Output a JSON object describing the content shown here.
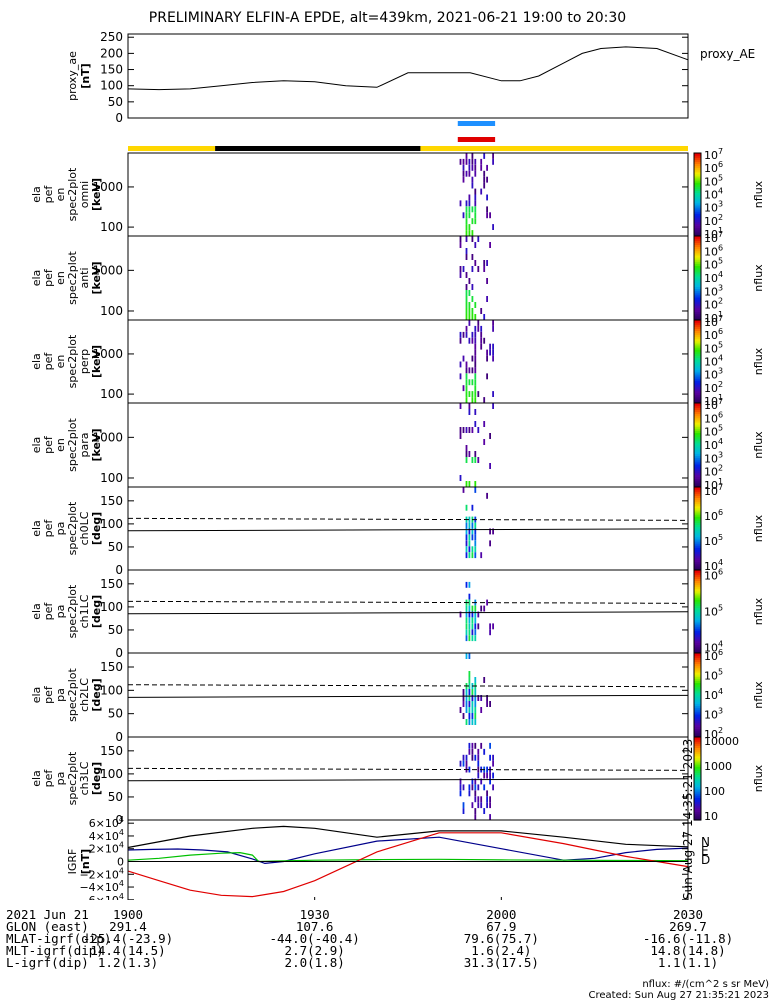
{
  "title": "PRELIMINARY ELFIN-A EPDE, alt=439km, 2021-06-21 19:00 to 20:30",
  "chart_data": [
    {
      "type": "line",
      "name": "proxy_ae",
      "ylabel": "proxy_ae",
      "yunit": "[nT]",
      "legend": "proxy_AE",
      "ylim": [
        0,
        260
      ],
      "yticks": [
        "0",
        "50",
        "100",
        "150",
        "200",
        "250"
      ],
      "xlim": [
        0,
        90
      ],
      "x": [
        0,
        5,
        10,
        15,
        20,
        25,
        30,
        35,
        40,
        45,
        50,
        55,
        60,
        63,
        66,
        70,
        73,
        76,
        80,
        85,
        90
      ],
      "values": [
        90,
        88,
        90,
        100,
        110,
        115,
        112,
        100,
        95,
        140,
        140,
        140,
        115,
        115,
        130,
        170,
        200,
        215,
        220,
        215,
        180
      ]
    },
    {
      "type": "heatmap",
      "name": "spec2plot omni",
      "ylabel_lines": [
        "ela",
        "pef",
        "en",
        "spec2plot",
        "omni"
      ],
      "yunit": "[keV]",
      "ylog": true,
      "ylim": [
        60,
        7000
      ],
      "yticks": [
        "100",
        "1000"
      ],
      "zlabel": "nflux",
      "zlim_exp": [
        1,
        7
      ],
      "zticks": [
        "10^1",
        "10^2",
        "10^3",
        "10^4",
        "10^5",
        "10^6",
        "10^7"
      ]
    },
    {
      "type": "heatmap",
      "name": "spec2plot anti",
      "ylabel_lines": [
        "ela",
        "pef",
        "en",
        "spec2plot",
        "anti"
      ],
      "yunit": "[keV]",
      "ylog": true,
      "ylim": [
        60,
        7000
      ],
      "yticks": [
        "100",
        "1000"
      ],
      "zlabel": "nflux",
      "zlim_exp": [
        1,
        7
      ],
      "zticks": [
        "10^1",
        "10^2",
        "10^3",
        "10^4",
        "10^5",
        "10^6",
        "10^7"
      ]
    },
    {
      "type": "heatmap",
      "name": "spec2plot perp",
      "ylabel_lines": [
        "ela",
        "pef",
        "en",
        "spec2plot",
        "perp"
      ],
      "yunit": "[keV]",
      "ylog": true,
      "ylim": [
        60,
        7000
      ],
      "yticks": [
        "100",
        "1000"
      ],
      "zlabel": "nflux",
      "zlim_exp": [
        1,
        7
      ],
      "zticks": [
        "10^1",
        "10^2",
        "10^3",
        "10^4",
        "10^5",
        "10^6",
        "10^7"
      ]
    },
    {
      "type": "heatmap",
      "name": "spec2plot para",
      "ylabel_lines": [
        "ela",
        "pef",
        "en",
        "spec2plot",
        "para"
      ],
      "yunit": "[keV]",
      "ylog": true,
      "ylim": [
        60,
        7000
      ],
      "yticks": [
        "100",
        "1000"
      ],
      "zlabel": "nflux",
      "zlim_exp": [
        1,
        7
      ],
      "zticks": [
        "10^1",
        "10^2",
        "10^3",
        "10^4",
        "10^5",
        "10^6",
        "10^7"
      ]
    },
    {
      "type": "heatmap",
      "name": "spec2plot ch0LC",
      "ylabel_lines": [
        "ela",
        "pef",
        "pa",
        "spec2plot",
        "ch0LC"
      ],
      "yunit": "[deg]",
      "ylim": [
        0,
        180
      ],
      "yticks": [
        "0",
        "50",
        "100",
        "150"
      ],
      "zlabel": "nflux",
      "zlim_exp": [
        3.5,
        7
      ],
      "zticks": [
        "10^4",
        "10^5",
        "10^6",
        "10^7"
      ]
    },
    {
      "type": "heatmap",
      "name": "spec2plot ch1LC",
      "ylabel_lines": [
        "ela",
        "pef",
        "pa",
        "spec2plot",
        "ch1LC"
      ],
      "yunit": "[deg]",
      "ylim": [
        0,
        180
      ],
      "yticks": [
        "0",
        "50",
        "100",
        "150"
      ],
      "zlabel": "nflux",
      "zlim_exp": [
        3.5,
        6.5
      ],
      "zticks": [
        "10^4",
        "10^5",
        "10^6"
      ]
    },
    {
      "type": "heatmap",
      "name": "spec2plot ch2LC",
      "ylabel_lines": [
        "ela",
        "pef",
        "pa",
        "spec2plot",
        "ch2LC"
      ],
      "yunit": "[deg]",
      "ylim": [
        0,
        180
      ],
      "yticks": [
        "0",
        "50",
        "100",
        "150"
      ],
      "zlabel": "nflux",
      "zlim_exp": [
        2,
        6.5
      ],
      "zticks": [
        "10^2",
        "10^3",
        "10^4",
        "10^5",
        "10^6"
      ]
    },
    {
      "type": "heatmap",
      "name": "spec2plot ch3LC",
      "ylabel_lines": [
        "ela",
        "pef",
        "pa",
        "spec2plot",
        "ch3LC"
      ],
      "yunit": "[deg]",
      "ylim": [
        0,
        180
      ],
      "yticks": [
        "0",
        "50",
        "100",
        "150"
      ],
      "zlabel": "nflux",
      "zlim_exp": [
        1,
        4
      ],
      "zticks": [
        "10",
        "100",
        "1000",
        "10000"
      ]
    },
    {
      "type": "line",
      "name": "IGRF",
      "ylabel": "IGRF",
      "yunit": "[nT]",
      "ylim": [
        -65000,
        65000
      ],
      "yticks": [
        "6×10^4",
        "4×10^4",
        "2×10^4",
        "0",
        "−2×10^4",
        "−4×10^4",
        "−6×10^4"
      ],
      "ytick_values": [
        60000,
        40000,
        20000,
        0,
        -20000,
        -40000,
        -60000
      ],
      "legend": [
        "N",
        "E",
        "D"
      ],
      "stamp": "Sun Aug 27 14:35:21 2023",
      "xlim": [
        0,
        90
      ],
      "series": [
        {
          "name": "N",
          "color": "#00008b",
          "x": [
            0,
            4,
            8,
            12,
            16,
            20,
            22,
            25,
            30,
            40,
            50,
            60,
            70,
            75,
            80,
            85,
            90
          ],
          "values": [
            18000,
            19000,
            19500,
            18000,
            15000,
            4000,
            -3000,
            0,
            12000,
            32000,
            38000,
            20000,
            2000,
            5000,
            14000,
            19000,
            21000
          ]
        },
        {
          "name": "E",
          "color": "#00c000",
          "x": [
            0,
            5,
            10,
            15,
            18,
            20,
            21,
            25,
            30,
            40,
            50,
            60,
            70,
            80,
            90
          ],
          "values": [
            2000,
            5000,
            10000,
            13000,
            14000,
            10000,
            0,
            1000,
            2000,
            3000,
            3500,
            2500,
            2000,
            1500,
            1200
          ]
        },
        {
          "name": "D",
          "color": "#e00000",
          "x": [
            0,
            5,
            10,
            15,
            20,
            25,
            30,
            40,
            50,
            60,
            70,
            80,
            90
          ],
          "values": [
            -15000,
            -30000,
            -45000,
            -53000,
            -55000,
            -47000,
            -30000,
            15000,
            45000,
            45000,
            28000,
            8000,
            -8000
          ]
        },
        {
          "name": "T",
          "color": "#000000",
          "x": [
            0,
            10,
            20,
            25,
            30,
            40,
            50,
            60,
            70,
            80,
            90
          ],
          "values": [
            22000,
            40000,
            52000,
            55000,
            52000,
            38000,
            48000,
            48000,
            38000,
            27000,
            23000
          ]
        }
      ]
    }
  ],
  "overlays": {
    "lc_dashed_deg": 112,
    "lc_solid_deg": 85
  },
  "time_bars": {
    "blue_range": [
      53,
      59
    ],
    "red_range": [
      53,
      59
    ],
    "segments": [
      {
        "from": 0,
        "to": 14,
        "color": "#ffd700"
      },
      {
        "from": 14,
        "to": 47,
        "color": "#000000"
      },
      {
        "from": 47,
        "to": 90,
        "color": "#ffd700"
      }
    ],
    "blue_color": "#1e90ff",
    "red_color": "#e00000"
  },
  "burst_range": [
    53,
    59
  ],
  "footer": {
    "rows": [
      {
        "label": "2021 Jun 21",
        "values": [
          "1900",
          "1930",
          "2000",
          "2030"
        ]
      },
      {
        "label": "GLON (east)",
        "values": [
          "291.4",
          "107.6",
          "67.9",
          "269.7"
        ]
      },
      {
        "label": "MLAT-igrf(dip)",
        "values": [
          "-25.4(-23.9)",
          "-44.0(-40.4)",
          "79.6(75.7)",
          "-16.6(-11.8)"
        ]
      },
      {
        "label": "MLT-igrf(dip)",
        "values": [
          "14.4(14.5)",
          "2.7(2.9)",
          "1.6(2.4)",
          "14.8(14.8)"
        ]
      },
      {
        "label": "L-igrf(dip)",
        "values": [
          "1.2(1.3)",
          "2.0(1.8)",
          "31.3(17.5)",
          "1.1(1.1)"
        ]
      }
    ],
    "units_note": "nflux: #/(cm^2 s sr MeV)",
    "created": "Created: Sun Aug 27 21:35:21 2023"
  }
}
